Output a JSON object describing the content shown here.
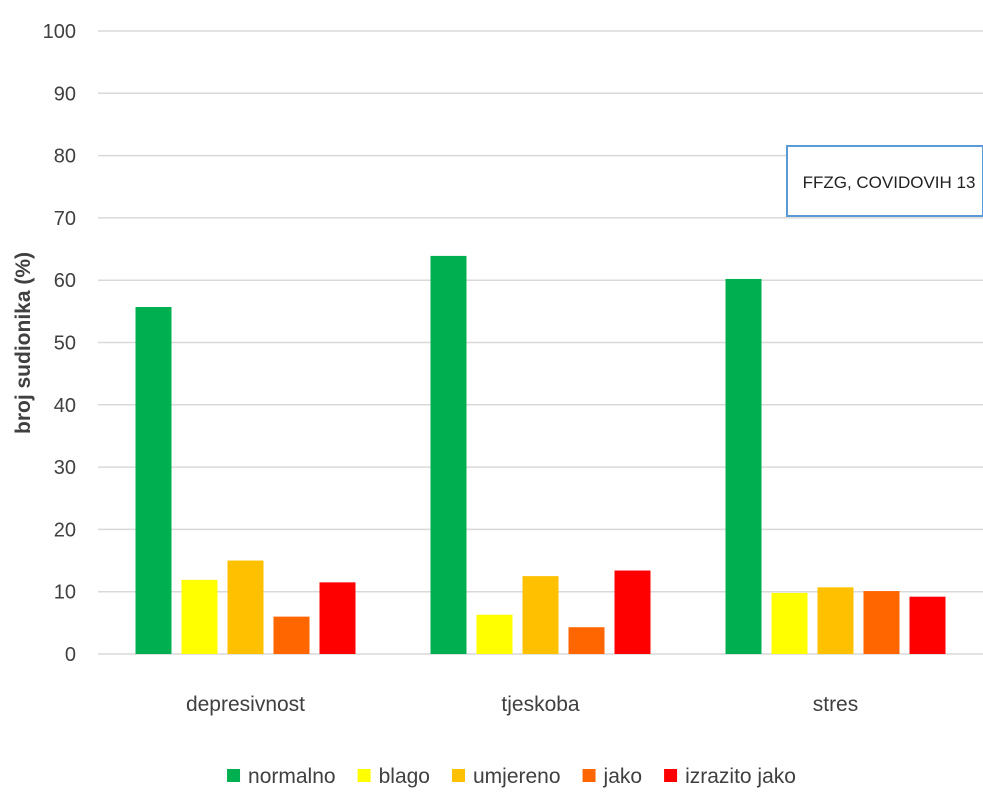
{
  "chart_data": {
    "type": "bar",
    "title": "",
    "xlabel": "",
    "ylabel": "broj sudionika (%)",
    "ylim": [
      0,
      100
    ],
    "yticks": [
      0,
      10,
      20,
      30,
      40,
      50,
      60,
      70,
      80,
      90,
      100
    ],
    "grid": true,
    "legend_position": "bottom",
    "categories": [
      "depresivnost",
      "tjeskoba",
      "stres"
    ],
    "series": [
      {
        "name": "normalno",
        "color": "#00b050",
        "values": [
          55.7,
          63.9,
          60.2
        ]
      },
      {
        "name": "blago",
        "color": "#ffff00",
        "values": [
          11.9,
          6.3,
          9.8
        ]
      },
      {
        "name": "umjereno",
        "color": "#ffc000",
        "values": [
          15.0,
          12.5,
          10.7
        ]
      },
      {
        "name": "jako",
        "color": "#ff6600",
        "values": [
          6.0,
          4.3,
          10.1
        ]
      },
      {
        "name": "izrazito jako",
        "color": "#ff0000",
        "values": [
          11.5,
          13.4,
          9.2
        ]
      }
    ],
    "annotation": "FFZG, COVIDOVIH 13"
  }
}
